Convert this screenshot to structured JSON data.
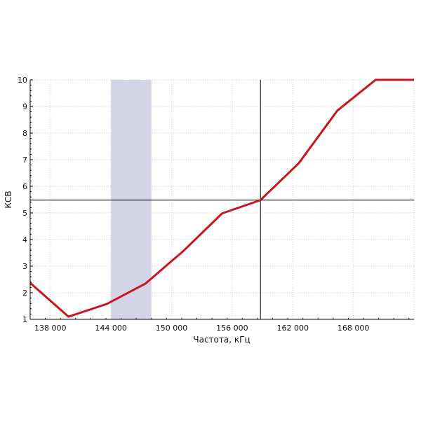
{
  "chart_data": {
    "type": "line",
    "title": "",
    "xlabel": "Частота, кГц",
    "ylabel": "КСВ",
    "xlim": [
      136000,
      174000
    ],
    "ylim": [
      1,
      10
    ],
    "x_ticks": [
      138000,
      144000,
      150000,
      156000,
      162000,
      168000
    ],
    "x_tick_labels": [
      "138 000",
      "144 000",
      "150 000",
      "156 000",
      "162 000",
      "168 000"
    ],
    "y_ticks": [
      1,
      2,
      3,
      4,
      5,
      6,
      7,
      8,
      9,
      10
    ],
    "y_tick_labels": [
      "1",
      "2",
      "3",
      "4",
      "5",
      "6",
      "7",
      "8",
      "9",
      "10"
    ],
    "grid": true,
    "series": [
      {
        "color": "#c8161d",
        "x": [
          136000,
          139800,
          143600,
          147400,
          151200,
          155000,
          158800,
          162600,
          166400,
          170200,
          174000
        ],
        "y": [
          2.37,
          1.1,
          1.58,
          2.34,
          3.58,
          4.98,
          5.48,
          6.87,
          8.84,
          10,
          10
        ]
      }
    ],
    "highlight_band": {
      "x": [
        144000,
        148000
      ],
      "color": "#d3d5e6"
    },
    "crosshair": {
      "x": 158800,
      "y": 5.48,
      "color": "#000000"
    }
  }
}
